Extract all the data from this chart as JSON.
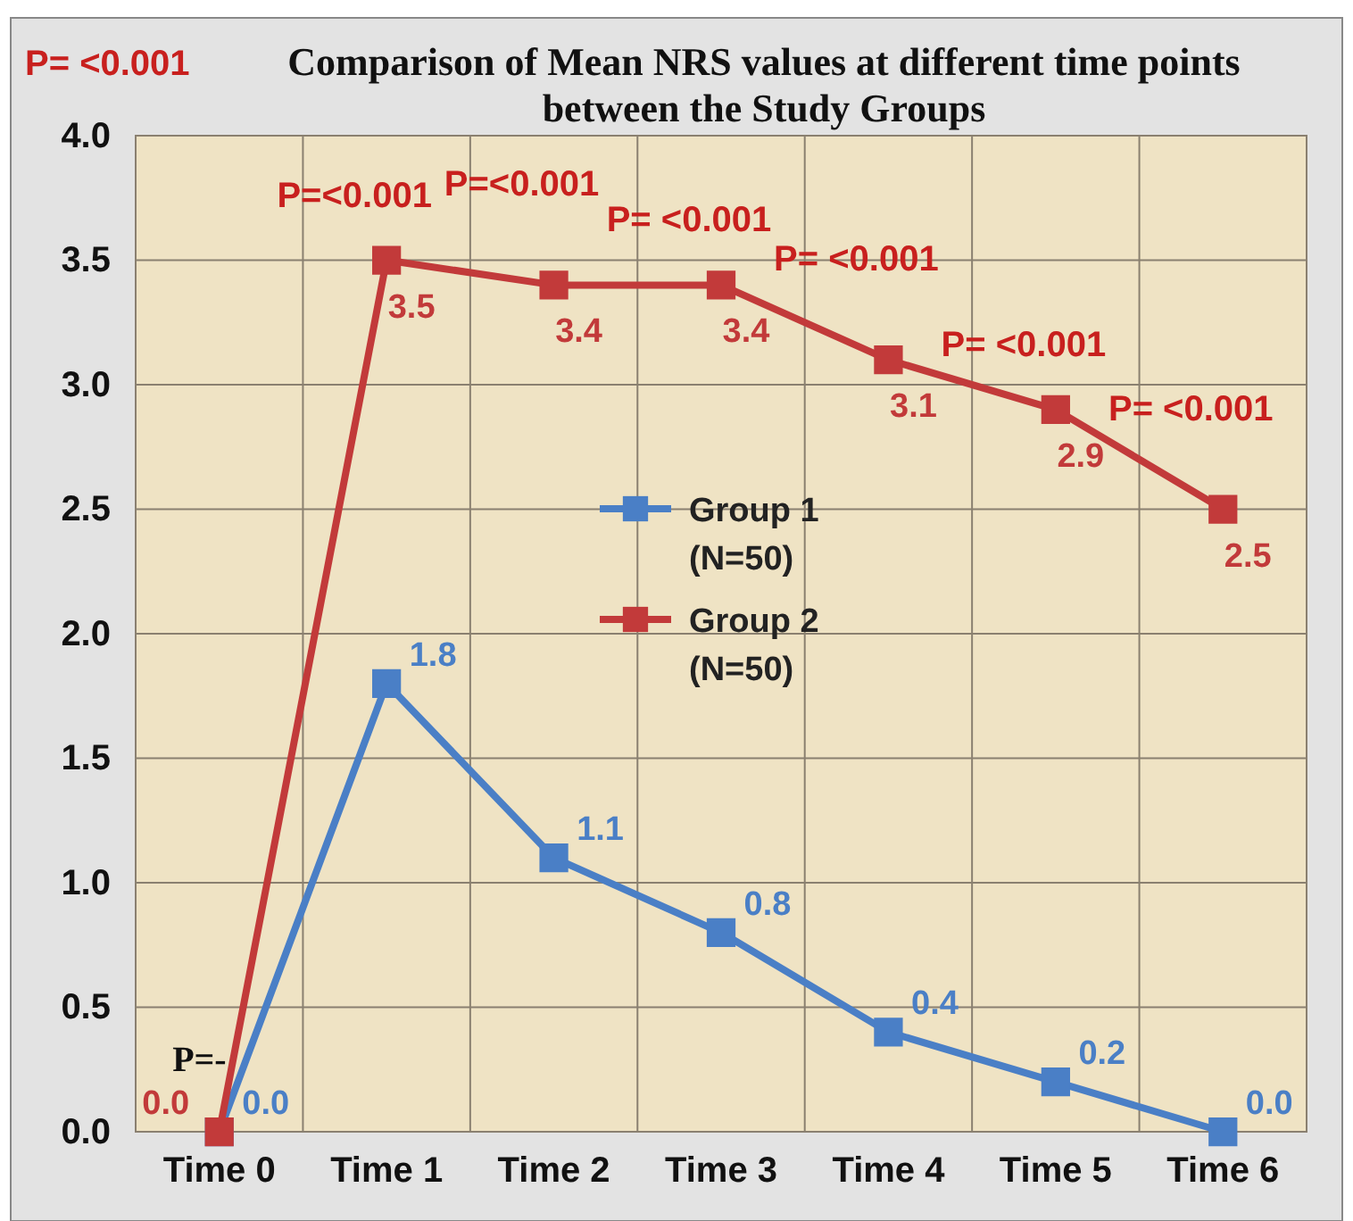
{
  "chart_data": {
    "type": "line",
    "title": "Comparison of Mean NRS values at different time points between the Study Groups",
    "categories": [
      "Time 0",
      "Time 1",
      "Time 2",
      "Time 3",
      "Time 4",
      "Time 5",
      "Time 6"
    ],
    "series": [
      {
        "name": "Group 1 (N=50)",
        "color": "#4a7fc6",
        "values": [
          0.0,
          1.8,
          1.1,
          0.8,
          0.4,
          0.2,
          0.0
        ],
        "value_labels": [
          "0.0",
          "1.8",
          "1.1",
          "0.8",
          "0.4",
          "0.2",
          "0.0"
        ]
      },
      {
        "name": "Group 2 (N=50)",
        "color": "#c23a3a",
        "values": [
          0.0,
          3.5,
          3.4,
          3.4,
          3.1,
          2.9,
          2.5
        ],
        "value_labels": [
          "0.0",
          "3.5",
          "3.4",
          "3.4",
          "3.1",
          "2.9",
          "2.5"
        ]
      }
    ],
    "ylim": [
      0,
      4
    ],
    "yticks": [
      "0.0",
      "0.5",
      "1.0",
      "1.5",
      "2.0",
      "2.5",
      "3.0",
      "3.5",
      "4.0"
    ],
    "grid": true,
    "legend": "center",
    "marker": "square",
    "line_style": "solid",
    "annotations": [
      "P= <0.001",
      "P=-",
      "P=<0.001",
      "P=<0.001",
      "P= <0.001",
      "P= <0.001",
      "P= <0.001",
      "P= <0.001"
    ]
  }
}
